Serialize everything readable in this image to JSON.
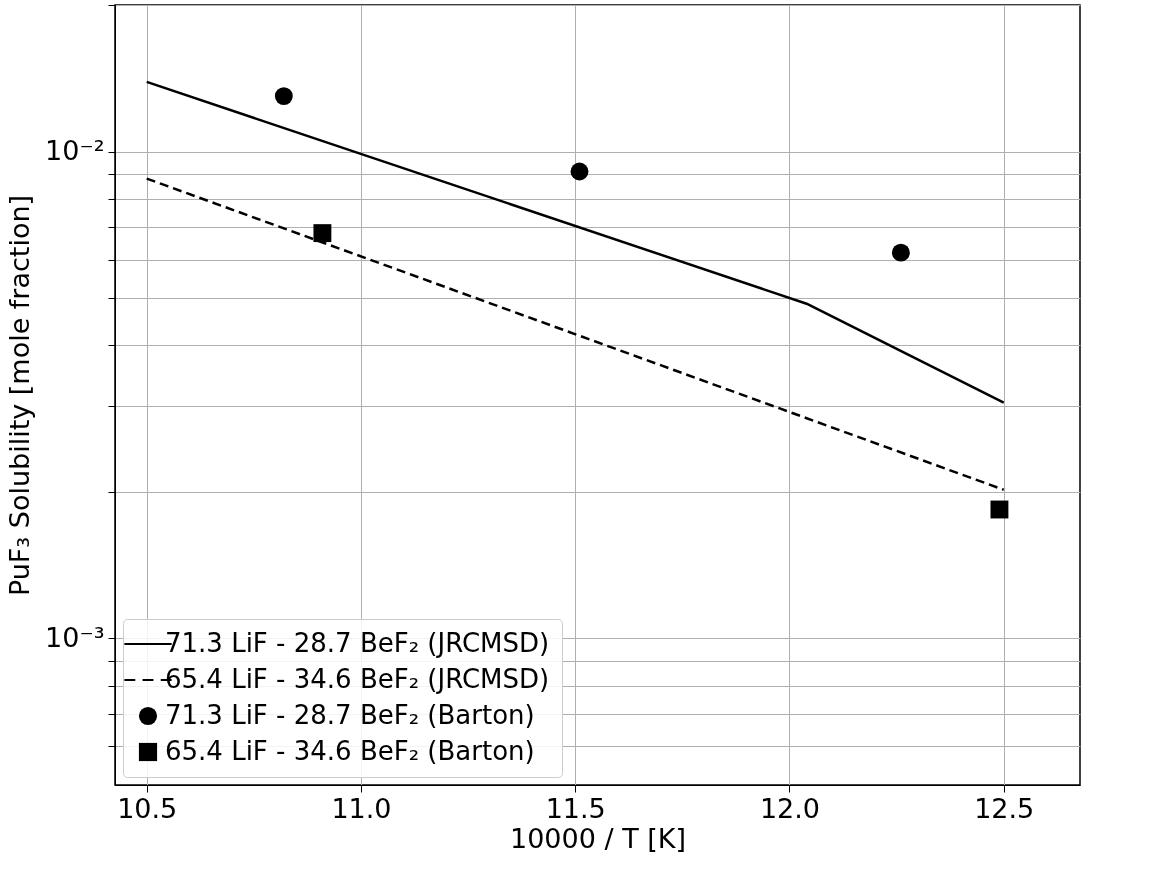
{
  "chart_data": {
    "type": "line",
    "xlabel": "10000 / T [K]",
    "ylabel": "PuF₃ Solubility [mole fraction]",
    "xlim": [
      10.426,
      12.678
    ],
    "ylim": [
      0.0005,
      0.02
    ],
    "log": "y",
    "grid": true,
    "legend": "bottom left",
    "xticks": [
      10.5,
      {
        "value": 11,
        "label": "11.0"
      },
      11.5,
      {
        "value": 12,
        "label": "12.0"
      },
      12.5
    ],
    "yticks": [
      {
        "value": 0.0006,
        "label": null
      },
      {
        "value": 0.0007,
        "label": null
      },
      {
        "value": 0.0008,
        "label": null
      },
      {
        "value": 0.0009,
        "label": null
      },
      {
        "value": 0.001,
        "label": "10⁻³"
      },
      {
        "value": 0.002,
        "label": null
      },
      {
        "value": 0.003,
        "label": null
      },
      {
        "value": 0.004,
        "label": null
      },
      {
        "value": 0.005,
        "label": null
      },
      {
        "value": 0.006,
        "label": null
      },
      {
        "value": 0.007,
        "label": null
      },
      {
        "value": 0.008,
        "label": null
      },
      {
        "value": 0.009,
        "label": null
      },
      {
        "value": 0.01,
        "label": "10⁻²"
      },
      {
        "value": 0.02,
        "label": null
      }
    ],
    "series": [
      {
        "name": "71.3 LiF - 28.7 BeF₂ (JRCMSD)",
        "color": "#000000",
        "line_style": "solid",
        "marker": "none",
        "x": [
          10.5,
          12.04,
          12.5
        ],
        "values": [
          0.0139,
          0.00487,
          0.00305
        ]
      },
      {
        "name": "65.4 LiF - 34.6 BeF₂ (JRCMSD)",
        "color": "#000000",
        "line_style": "dashed",
        "marker": "none",
        "x": [
          10.5,
          12.5
        ],
        "values": [
          0.0088,
          0.00202
        ]
      },
      {
        "name": "71.3 LiF - 28.7 BeF₂ (Barton)",
        "type": "scatter",
        "color": "#000000",
        "marker": "circle",
        "x": [
          10.82,
          11.51,
          12.26
        ],
        "values": [
          0.013,
          0.0091,
          0.0062
        ]
      },
      {
        "name": "65.4 LiF - 34.6 BeF₂ (Barton)",
        "type": "scatter",
        "color": "#000000",
        "marker": "square",
        "x": [
          10.91,
          12.49
        ],
        "values": [
          0.0068,
          0.00184
        ]
      }
    ]
  }
}
